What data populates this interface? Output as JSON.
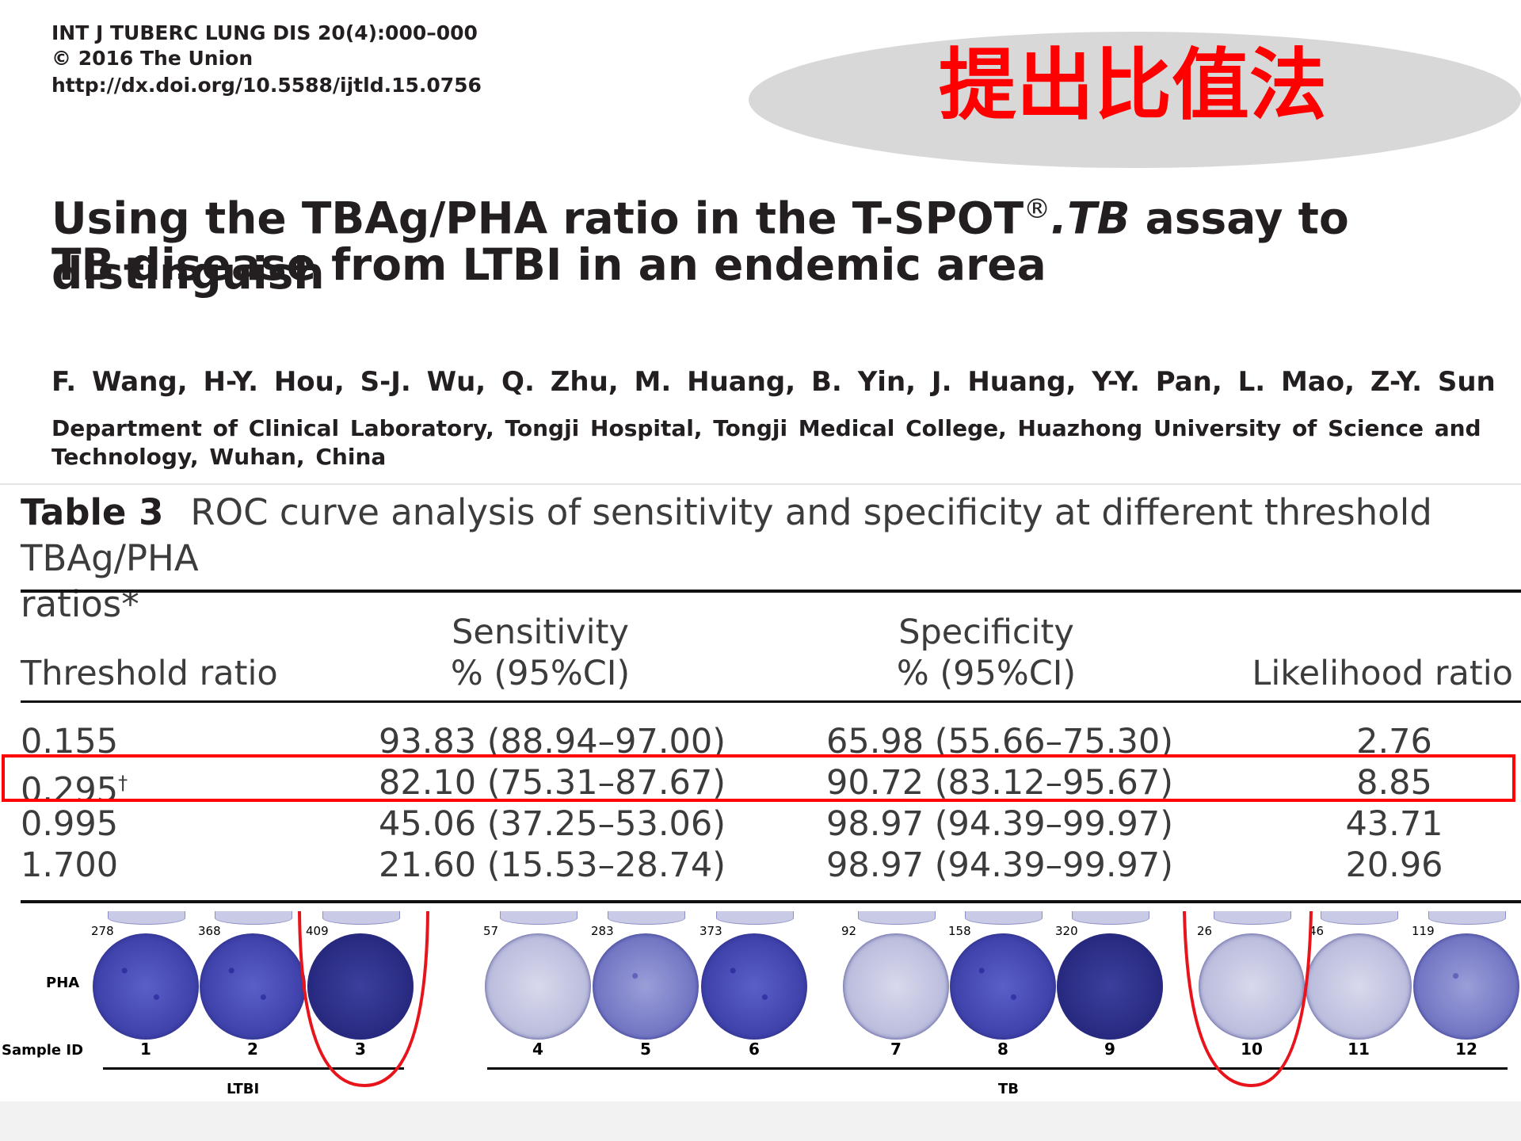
{
  "header": {
    "journal": "INT J TUBERC LUNG DIS 20(4):000–000",
    "copyright": "© 2016 The Union",
    "doi": "http://dx.doi.org/10.5588/ijtld.15.0756"
  },
  "badge": {
    "text": "提出比值法",
    "color": "#ff0000"
  },
  "title": {
    "line1_part1": "Using the TBAg/PHA ratio in the T-SPOT",
    "line1_reg": "®",
    "line1_tb": ".TB",
    "line1_part2": " assay to distinguish",
    "line2": "TB disease from LTBI in an endemic area"
  },
  "authors": "F. Wang, H-Y. Hou, S-J. Wu, Q. Zhu, M. Huang, B. Yin, J. Huang, Y-Y. Pan, L. Mao, Z-Y. Sun",
  "affiliation": {
    "line1": "Department of Clinical Laboratory, Tongji Hospital, Tongji Medical College, Huazhong University of Science and",
    "line2": "Technology, Wuhan, China"
  },
  "table": {
    "label": "Table 3",
    "caption_line1": "ROC curve analysis of sensitivity and specificity at different threshold TBAg/PHA",
    "caption_line2": "ratios*",
    "headers": {
      "threshold": "Threshold ratio",
      "sens_top": "Sensitivity",
      "sens_bottom": "% (95%CI)",
      "spec_top": "Specificity",
      "spec_bottom": "% (95%CI)",
      "lr": "Likelihood ratio"
    },
    "rows": [
      {
        "threshold": "0.155",
        "dagger": "",
        "sensitivity": "93.83 (88.94–97.00)",
        "specificity": "65.98 (55.66–75.30)",
        "lr": "2.76"
      },
      {
        "threshold": "0.295",
        "dagger": "†",
        "sensitivity": "82.10 (75.31–87.67)",
        "specificity": "90.72 (83.12–95.67)",
        "lr": "8.85"
      },
      {
        "threshold": "0.995",
        "dagger": "",
        "sensitivity": "45.06 (37.25–53.06)",
        "specificity": "98.97 (94.39–99.97)",
        "lr": "43.71"
      },
      {
        "threshold": "1.700",
        "dagger": "",
        "sensitivity": "21.60 (15.53–28.74)",
        "specificity": "98.97 (94.39–99.97)",
        "lr": "20.96"
      }
    ],
    "highlight_color": "#ff0000"
  },
  "figure": {
    "row_label": "PHA",
    "sample_label": "Sample ID",
    "groups": [
      "LTBI",
      "TB"
    ],
    "samples": [
      {
        "id": "1",
        "count": "278"
      },
      {
        "id": "2",
        "count": "368"
      },
      {
        "id": "3",
        "count": "409"
      },
      {
        "id": "4",
        "count": "57"
      },
      {
        "id": "5",
        "count": "283"
      },
      {
        "id": "6",
        "count": "373"
      },
      {
        "id": "7",
        "count": "92"
      },
      {
        "id": "8",
        "count": "158"
      },
      {
        "id": "9",
        "count": "320"
      },
      {
        "id": "10",
        "count": "26"
      },
      {
        "id": "11",
        "count": "46"
      },
      {
        "id": "12",
        "count": "119"
      }
    ]
  }
}
